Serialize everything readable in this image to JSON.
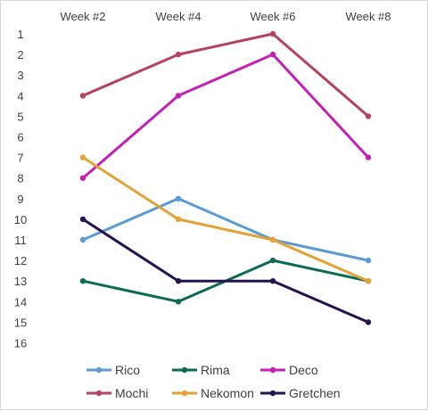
{
  "chart_data": {
    "type": "line",
    "title": "",
    "xlabel": "",
    "ylabel": "",
    "categories": [
      "Week #2",
      "Week #4",
      "Week #6",
      "Week #8"
    ],
    "y_ticks": [
      "1",
      "2",
      "3",
      "4",
      "5",
      "6",
      "7",
      "8",
      "9",
      "10",
      "11",
      "12",
      "13",
      "14",
      "15",
      "16"
    ],
    "ylim": [
      1,
      16
    ],
    "y_reversed": true,
    "grid": false,
    "legend_position": "bottom",
    "series": [
      {
        "name": "Rico",
        "color": "#5b9bd5",
        "values": [
          11,
          9,
          11,
          12
        ]
      },
      {
        "name": "Rima",
        "color": "#0b6b55",
        "values": [
          13,
          14,
          12,
          13
        ]
      },
      {
        "name": "Deco",
        "color": "#c71fb4",
        "values": [
          8,
          4,
          2,
          7
        ]
      },
      {
        "name": "Mochi",
        "color": "#b5435e",
        "values": [
          4,
          2,
          1,
          5
        ]
      },
      {
        "name": "Nekomon",
        "color": "#e3a234",
        "values": [
          7,
          10,
          11,
          13
        ]
      },
      {
        "name": "Gretchen",
        "color": "#25124f",
        "values": [
          10,
          13,
          13,
          15
        ]
      }
    ]
  }
}
